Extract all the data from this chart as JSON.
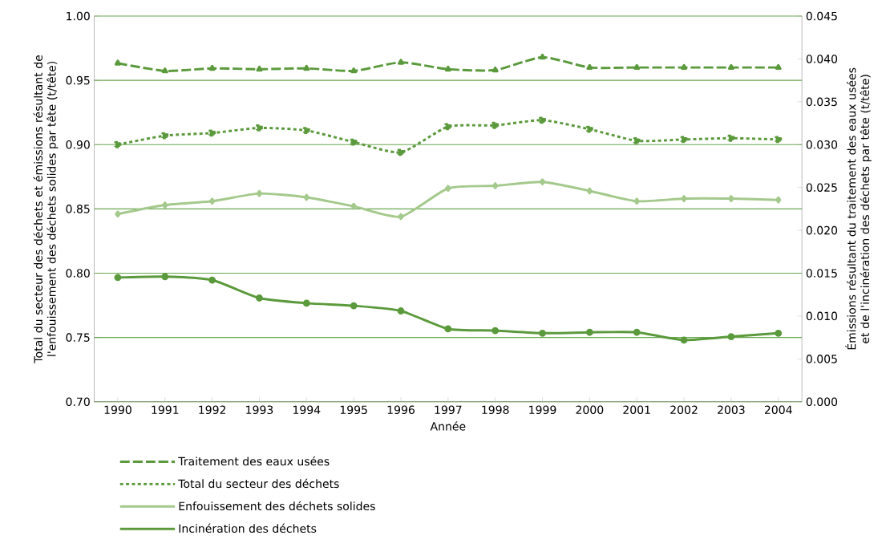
{
  "chart_data": {
    "type": "line",
    "categories": [
      "1990",
      "1991",
      "1992",
      "1993",
      "1994",
      "1995",
      "1996",
      "1997",
      "1998",
      "1999",
      "2000",
      "2001",
      "2002",
      "2003",
      "2004"
    ],
    "xlabel": "Année",
    "ylabel": "Total du secteur des déchets et émissions résultant de l'enfouissement des déchets solides par tête (t/tête)",
    "y2label": "Émissions résultant du traitement des eaux usées et de l'incinération des déchets par tête (t/tête)",
    "ylim": [
      0.7,
      1.0
    ],
    "yticks": [
      {
        "value": 0.7,
        "label": "0.70"
      },
      {
        "value": 0.75,
        "label": "0.75"
      },
      {
        "value": 0.8,
        "label": "0.80"
      },
      {
        "value": 0.85,
        "label": "0.85"
      },
      {
        "value": 0.9,
        "label": "0.90"
      },
      {
        "value": 0.95,
        "label": "0.95"
      },
      {
        "value": 1.0,
        "label": "1.00"
      }
    ],
    "y2lim": [
      0,
      0.045
    ],
    "y2ticks": [
      {
        "value": 0,
        "label": "0.000"
      },
      {
        "value": 0.005,
        "label": "0.005"
      },
      {
        "value": 0.01,
        "label": "0.010"
      },
      {
        "value": 0.015,
        "label": "0.015"
      },
      {
        "value": 0.02,
        "label": "0.020"
      },
      {
        "value": 0.025,
        "label": "0.025"
      },
      {
        "value": 0.03,
        "label": "0.030"
      },
      {
        "value": 0.035,
        "label": "0.035"
      },
      {
        "value": 0.04,
        "label": "0.040"
      },
      {
        "value": 0.045,
        "label": "0.045"
      }
    ],
    "grid": "y",
    "legend": "bottom left",
    "series": [
      {
        "name": "Traitement des eaux usées",
        "color": "#5b9a3c",
        "axis": "y2",
        "marker": "triangle",
        "line_style": "dashed",
        "values": [
          0.0395,
          0.0386,
          0.0389,
          0.0388,
          0.0389,
          0.0386,
          0.0396,
          0.0388,
          0.0387,
          0.0402,
          0.039,
          0.039,
          0.039,
          0.039,
          0.039
        ]
      },
      {
        "name": "Total du secteur des déchets",
        "color": "#5b9a3c",
        "marker": "square",
        "line_style": "dotted",
        "values": [
          0.9,
          0.907,
          0.909,
          0.913,
          0.911,
          0.902,
          0.894,
          0.914,
          0.915,
          0.919,
          0.912,
          0.903,
          0.904,
          0.905,
          0.904
        ]
      },
      {
        "name": "Enfouissement des déchets solides",
        "color": "#a4c98c",
        "marker": "diamond",
        "line_style": "solid",
        "values": [
          0.846,
          0.853,
          0.856,
          0.862,
          0.859,
          0.852,
          0.844,
          0.866,
          0.868,
          0.871,
          0.864,
          0.856,
          0.858,
          0.858,
          0.857
        ]
      },
      {
        "name": "Incinération des déchets",
        "color": "#5b9a3c",
        "axis": "y2",
        "marker": "circle",
        "line_style": "solid",
        "values": [
          0.0145,
          0.0146,
          0.0142,
          0.0121,
          0.0115,
          0.0112,
          0.0106,
          0.0085,
          0.0083,
          0.008,
          0.0081,
          0.0081,
          0.0072,
          0.0076,
          0.008
        ]
      }
    ]
  }
}
